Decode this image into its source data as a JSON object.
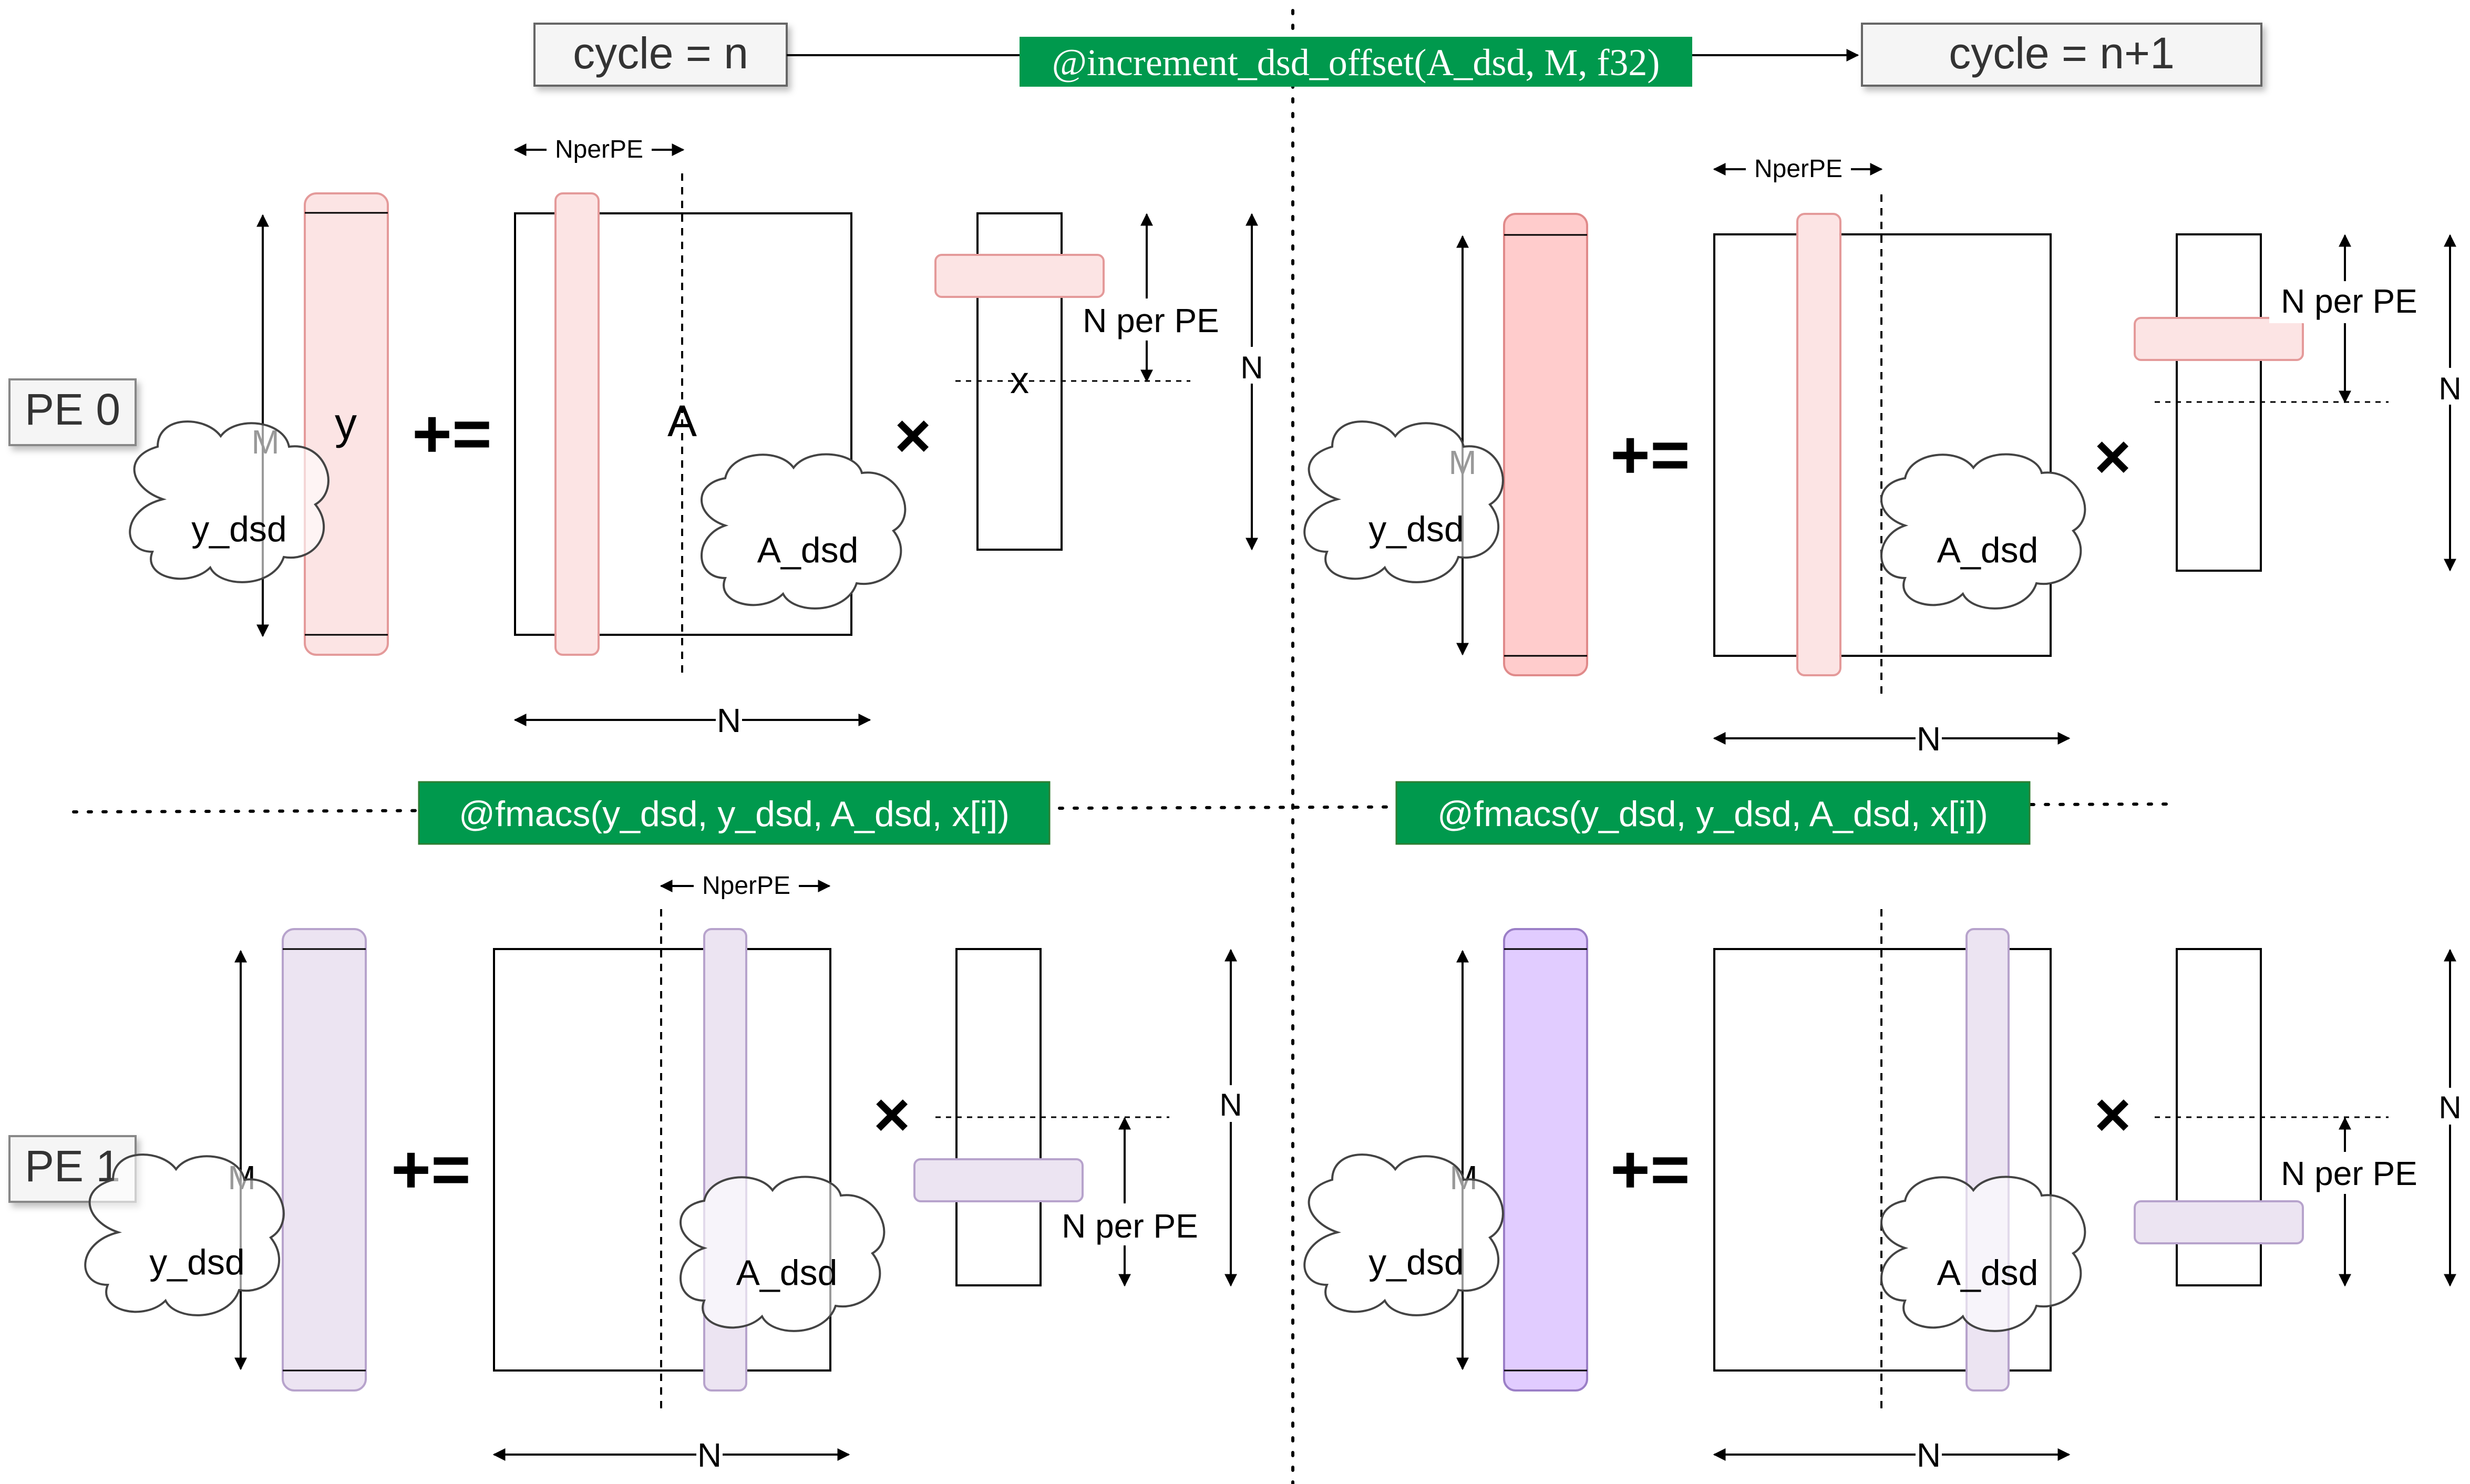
{
  "header": {
    "cycle_left": "cycle = n",
    "cycle_right": "cycle = n+1",
    "offset_call": "@increment_dsd_offset(A_dsd, M, f32)"
  },
  "pe_labels": {
    "pe0": "PE 0",
    "pe1": "PE 1"
  },
  "fmacs_call": "@fmacs(y_dsd, y_dsd, A_dsd, x[i])",
  "labels": {
    "m": "M",
    "n": "N",
    "nperpe": "NperPE",
    "n_per_pe": "N per PE",
    "y": "y",
    "a": "A",
    "x": "x",
    "y_dsd": "y_dsd",
    "a_dsd": "A_dsd",
    "plus_equals": "+=",
    "times": "×"
  },
  "colors": {
    "green": "#00994d",
    "pink_light": "#fce4e4",
    "pink_dark": "#ffcccc",
    "pink_stroke": "#e49a9a",
    "purple_light": "#ece4f2",
    "purple_dark": "#e1ccff",
    "purple_stroke": "#b7a3cc"
  }
}
